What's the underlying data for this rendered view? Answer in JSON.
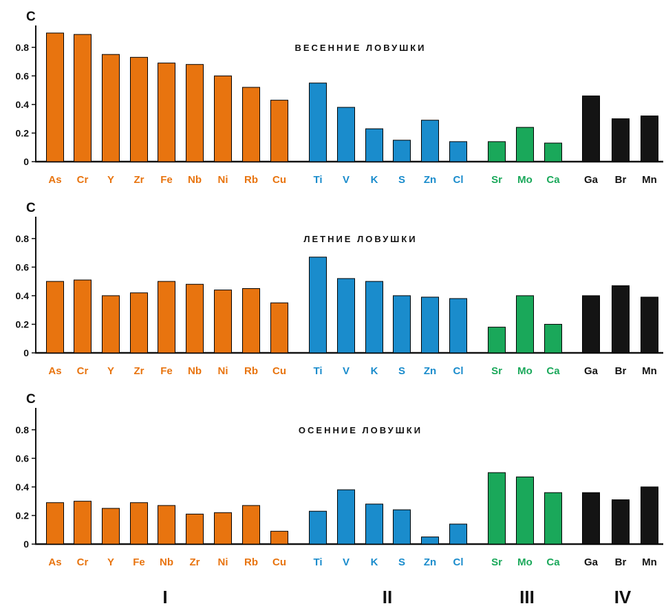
{
  "colors": {
    "I": "#e8740f",
    "II": "#1a8ccc",
    "III": "#1aa85a",
    "IV": "#141414",
    "axis": "#111111"
  },
  "group_labels": [
    "I",
    "II",
    "III",
    "IV"
  ],
  "chart_data": [
    {
      "type": "bar",
      "title": "ВЕСЕННИЕ ЛОВУШКИ",
      "ylabel": "C",
      "ylim": [
        0,
        0.9
      ],
      "yticks": [
        "0",
        "0.2",
        "0.4",
        "0.6",
        "0.8"
      ],
      "categories": [
        "As",
        "Cr",
        "Y",
        "Zr",
        "Fe",
        "Nb",
        "Ni",
        "Rb",
        "Cu",
        "Ti",
        "V",
        "K",
        "S",
        "Zn",
        "Cl",
        "Sr",
        "Mo",
        "Ca",
        "Ga",
        "Br",
        "Mn"
      ],
      "groups": [
        "I",
        "I",
        "I",
        "I",
        "I",
        "I",
        "I",
        "I",
        "I",
        "II",
        "II",
        "II",
        "II",
        "II",
        "II",
        "III",
        "III",
        "III",
        "IV",
        "IV",
        "IV"
      ],
      "values": [
        0.9,
        0.89,
        0.75,
        0.73,
        0.69,
        0.68,
        0.6,
        0.52,
        0.43,
        0.55,
        0.38,
        0.23,
        0.15,
        0.29,
        0.14,
        0.14,
        0.24,
        0.13,
        0.46,
        0.3,
        0.32
      ]
    },
    {
      "type": "bar",
      "title": "ЛЕТНИЕ ЛОВУШКИ",
      "ylabel": "C",
      "ylim": [
        0,
        0.9
      ],
      "yticks": [
        "0",
        "0.2",
        "0.4",
        "0.6",
        "0.8"
      ],
      "categories": [
        "As",
        "Cr",
        "Y",
        "Zr",
        "Fe",
        "Nb",
        "Ni",
        "Rb",
        "Cu",
        "Ti",
        "V",
        "K",
        "S",
        "Zn",
        "Cl",
        "Sr",
        "Mo",
        "Ca",
        "Ga",
        "Br",
        "Mn"
      ],
      "groups": [
        "I",
        "I",
        "I",
        "I",
        "I",
        "I",
        "I",
        "I",
        "I",
        "II",
        "II",
        "II",
        "II",
        "II",
        "II",
        "III",
        "III",
        "III",
        "IV",
        "IV",
        "IV"
      ],
      "values": [
        0.5,
        0.51,
        0.4,
        0.42,
        0.5,
        0.48,
        0.44,
        0.45,
        0.35,
        0.67,
        0.52,
        0.5,
        0.4,
        0.39,
        0.38,
        0.18,
        0.4,
        0.2,
        0.4,
        0.47,
        0.39
      ]
    },
    {
      "type": "bar",
      "title": "ОСЕННИЕ ЛОВУШКИ",
      "ylabel": "C",
      "ylim": [
        0,
        0.9
      ],
      "yticks": [
        "0",
        "0.2",
        "0.4",
        "0.6",
        "0.8"
      ],
      "categories": [
        "As",
        "Cr",
        "Y",
        "Fe",
        "Nb",
        "Zr",
        "Ni",
        "Rb",
        "Cu",
        "Ti",
        "V",
        "K",
        "S",
        "Zn",
        "Cl",
        "Sr",
        "Mo",
        "Ca",
        "Ga",
        "Br",
        "Mn"
      ],
      "groups": [
        "I",
        "I",
        "I",
        "I",
        "I",
        "I",
        "I",
        "I",
        "I",
        "II",
        "II",
        "II",
        "II",
        "II",
        "II",
        "III",
        "III",
        "III",
        "IV",
        "IV",
        "IV"
      ],
      "values": [
        0.29,
        0.3,
        0.25,
        0.29,
        0.27,
        0.21,
        0.22,
        0.27,
        0.09,
        0.23,
        0.38,
        0.28,
        0.24,
        0.05,
        0.14,
        0.5,
        0.47,
        0.36,
        0.36,
        0.31,
        0.4
      ]
    }
  ]
}
